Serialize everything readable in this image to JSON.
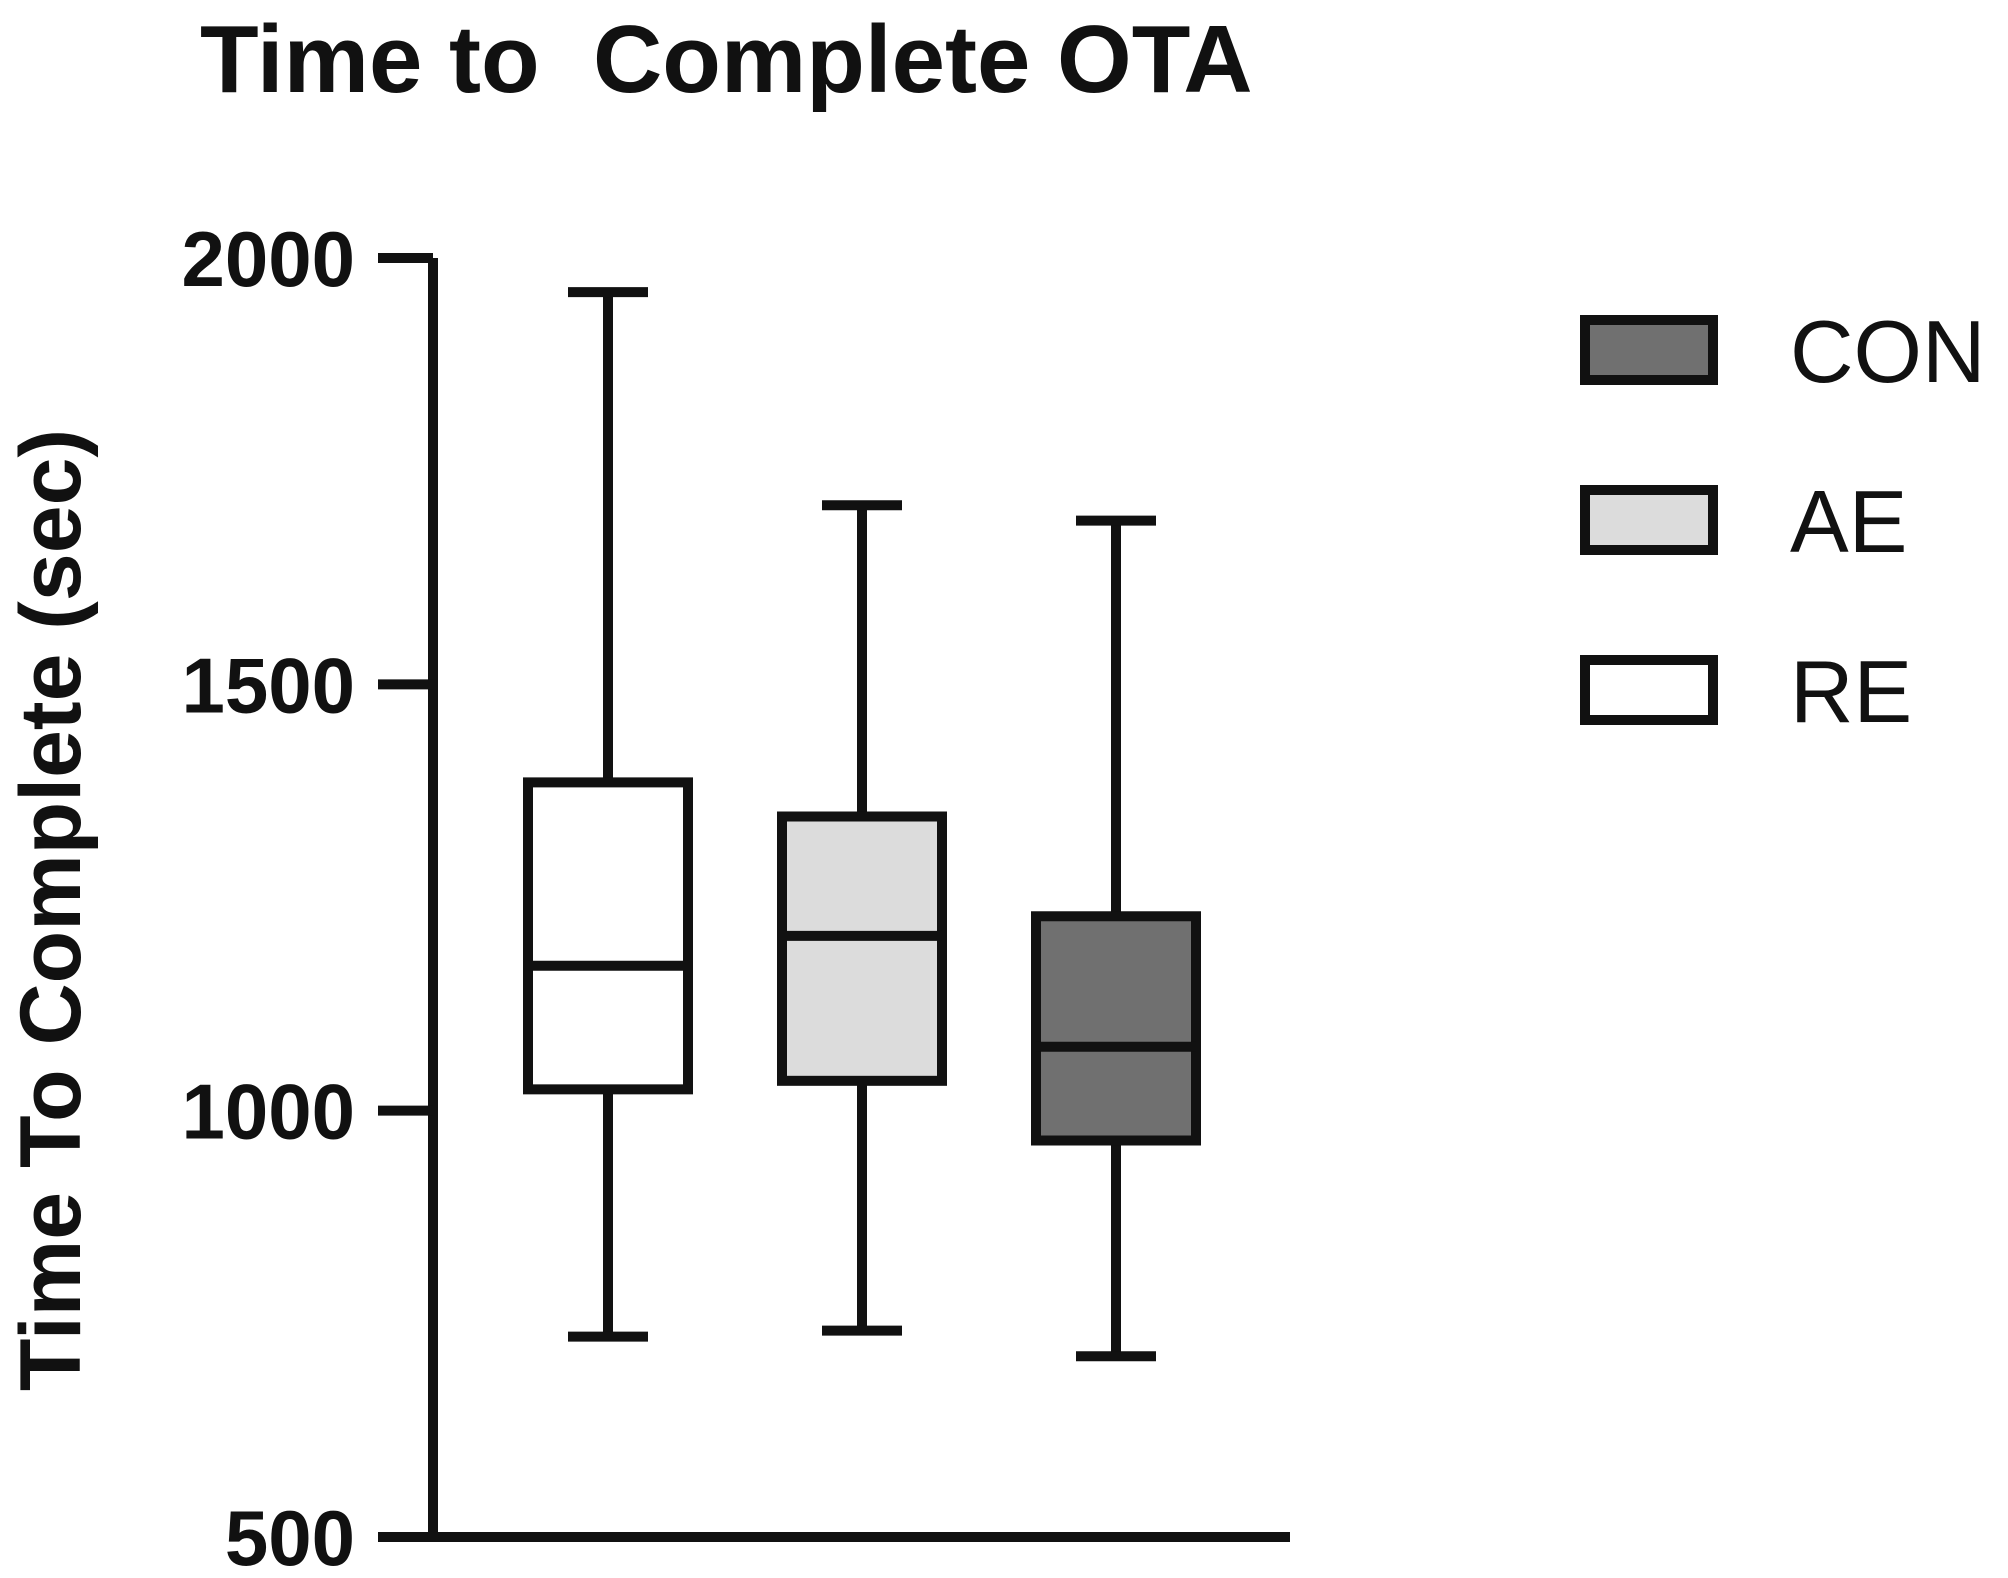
{
  "chart_data": {
    "type": "box",
    "title": "Time to  Complete OTA",
    "ylabel": "Time To Complete (sec)",
    "xlabel": "",
    "ylim": [
      500,
      2000
    ],
    "yticks": [
      500,
      1000,
      1500,
      2000
    ],
    "ytick_labels": [
      "500",
      "1000",
      "1500",
      "2000"
    ],
    "grid": false,
    "legend_position": "top-right",
    "series": [
      {
        "name": "RE",
        "color": "#ffffff",
        "min": 735,
        "q1": 1025,
        "median": 1170,
        "q3": 1385,
        "max": 1960
      },
      {
        "name": "AE",
        "color": "#dcdcdc",
        "min": 742,
        "q1": 1035,
        "median": 1205,
        "q3": 1345,
        "max": 1710
      },
      {
        "name": "CON",
        "color": "#707070",
        "min": 712,
        "q1": 965,
        "median": 1075,
        "q3": 1228,
        "max": 1692
      }
    ],
    "legend": [
      {
        "name": "CON",
        "color": "#707070"
      },
      {
        "name": "AE",
        "color": "#dcdcdc"
      },
      {
        "name": "RE",
        "color": "#ffffff"
      }
    ]
  }
}
